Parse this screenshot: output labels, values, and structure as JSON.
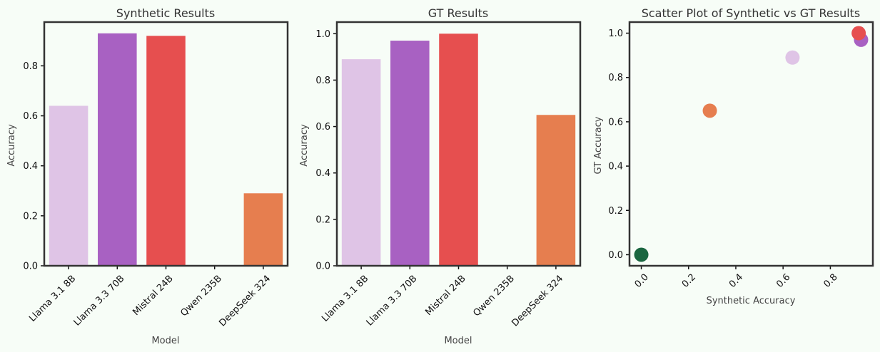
{
  "chart_data": [
    {
      "type": "bar",
      "title": "Synthetic Results",
      "xlabel": "Model",
      "ylabel": "Accuracy",
      "categories": [
        "Llama 3.1 8B",
        "Llama 3.3 70B",
        "Mistral 24B",
        "Qwen 235B",
        "DeepSeek 324"
      ],
      "values": [
        0.64,
        0.93,
        0.92,
        0.0,
        0.29
      ],
      "colors": [
        "#dfc4e6",
        "#a861c2",
        "#e64f4f",
        "#1a6640",
        "#e67e4f"
      ],
      "ylim": [
        0,
        0.975
      ],
      "yticks": [
        0.0,
        0.2,
        0.4,
        0.6,
        0.8
      ],
      "ytick_labels": [
        "0.0",
        "0.2",
        "0.4",
        "0.6",
        "0.8"
      ],
      "grid": false
    },
    {
      "type": "bar",
      "title": "GT Results",
      "xlabel": "Model",
      "ylabel": "Accuracy",
      "categories": [
        "Llama 3.1 8B",
        "Llama 3.3 70B",
        "Mistral 24B",
        "Qwen 235B",
        "DeepSeek 324"
      ],
      "values": [
        0.89,
        0.97,
        1.0,
        0.0,
        0.65
      ],
      "colors": [
        "#dfc4e6",
        "#a861c2",
        "#e64f4f",
        "#1a6640",
        "#e67e4f"
      ],
      "ylim": [
        0,
        1.05
      ],
      "yticks": [
        0.0,
        0.2,
        0.4,
        0.6,
        0.8,
        1.0
      ],
      "ytick_labels": [
        "0.0",
        "0.2",
        "0.4",
        "0.6",
        "0.8",
        "1.0"
      ],
      "grid": false
    },
    {
      "type": "scatter",
      "title": "Scatter Plot of Synthetic vs GT Results",
      "xlabel": "Synthetic Accuracy",
      "ylabel": "GT Accuracy",
      "points": [
        {
          "x": 0.64,
          "y": 0.89,
          "color": "#dfc4e6"
        },
        {
          "x": 0.93,
          "y": 0.97,
          "color": "#a861c2"
        },
        {
          "x": 0.92,
          "y": 1.0,
          "color": "#e64f4f"
        },
        {
          "x": 0.0,
          "y": 0.0,
          "color": "#1a6640"
        },
        {
          "x": 0.29,
          "y": 0.65,
          "color": "#e67e4f"
        }
      ],
      "xlim": [
        -0.05,
        0.98
      ],
      "ylim": [
        -0.05,
        1.05
      ],
      "xticks": [
        0.0,
        0.2,
        0.4,
        0.6,
        0.8
      ],
      "xtick_labels": [
        "0.0",
        "0.2",
        "0.4",
        "0.6",
        "0.8"
      ],
      "yticks": [
        0.0,
        0.2,
        0.4,
        0.6,
        0.8,
        1.0
      ],
      "ytick_labels": [
        "0.0",
        "0.2",
        "0.4",
        "0.6",
        "0.8",
        "1.0"
      ],
      "grid": false
    }
  ]
}
